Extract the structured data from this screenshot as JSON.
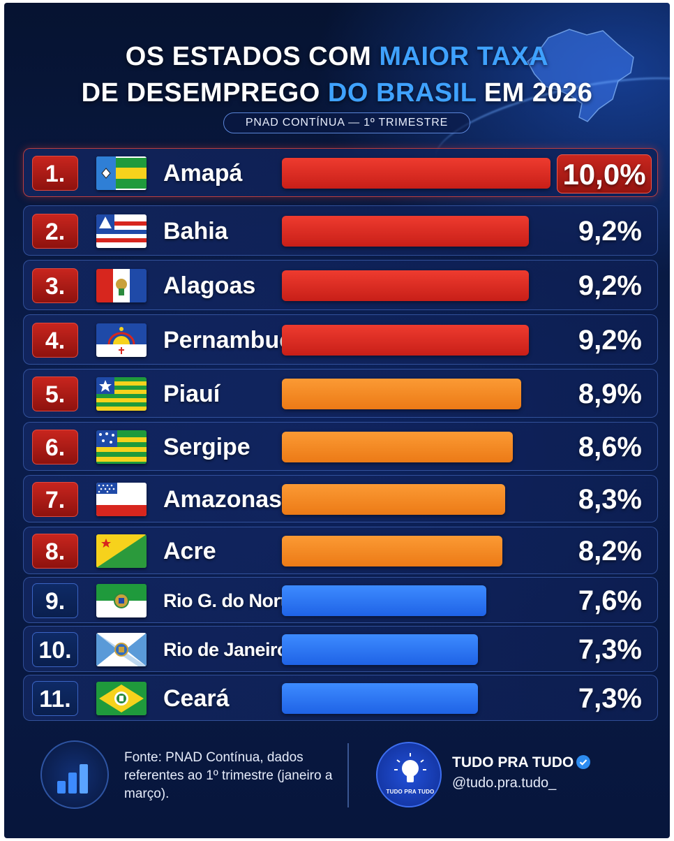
{
  "header": {
    "title_line1_a": "OS ESTADOS COM ",
    "title_line1_b": "MAIOR TAXA",
    "title_line2_a": "DE DESEMPREGO ",
    "title_line2_b": "DO BRASIL",
    "title_line2_c": " EM 2026",
    "subtitle": "PNAD CONTÍNUA — 1º TRIMESTRE"
  },
  "colors": {
    "red": "#d9291f",
    "orange": "#f5871f",
    "blue": "#2e76f5",
    "highlight": "#3fa2ff"
  },
  "chart_data": {
    "type": "bar",
    "orientation": "horizontal",
    "categories": [
      "Amapá",
      "Bahia",
      "Alagoas",
      "Pernambuco",
      "Piauí",
      "Sergipe",
      "Amazonas",
      "Acre",
      "Rio G. do Norte",
      "Rio de Janeiro",
      "Ceará"
    ],
    "values": [
      10.0,
      9.2,
      9.2,
      9.2,
      8.9,
      8.6,
      8.3,
      8.2,
      7.6,
      7.3,
      7.3
    ],
    "ranks": [
      "1.",
      "2.",
      "3.",
      "4.",
      "5.",
      "6.",
      "7.",
      "8.",
      "9.",
      "10.",
      "11."
    ],
    "value_labels": [
      "10,0%",
      "9,2%",
      "9,2%",
      "9,2%",
      "8,9%",
      "8,6%",
      "8,3%",
      "8,2%",
      "7,6%",
      "7,3%",
      "7,3%"
    ],
    "bar_colors": [
      "red",
      "red",
      "red",
      "red",
      "orange",
      "orange",
      "orange",
      "orange",
      "blue",
      "blue",
      "blue"
    ],
    "flag_icons": [
      "amapa-flag-icon",
      "bahia-flag-icon",
      "alagoas-flag-icon",
      "pernambuco-flag-icon",
      "piaui-flag-icon",
      "sergipe-flag-icon",
      "amazonas-flag-icon",
      "acre-flag-icon",
      "rio-grande-do-norte-flag-icon",
      "rio-de-janeiro-flag-icon",
      "ceara-flag-icon"
    ],
    "xlim": [
      0,
      10.0
    ],
    "grid": false,
    "legend": "none"
  },
  "footer": {
    "source": "Fonte: PNAD Contínua, dados referentes ao 1º trimestre (janeiro a março).",
    "brand_name": "TUDO PRA TUDO",
    "handle": "@tudo.pra.tudo_",
    "logo_text": "TUDO PRA TUDO",
    "left_icon": "bar-chart-icon",
    "logo_icon": "lightbulb-icon"
  }
}
